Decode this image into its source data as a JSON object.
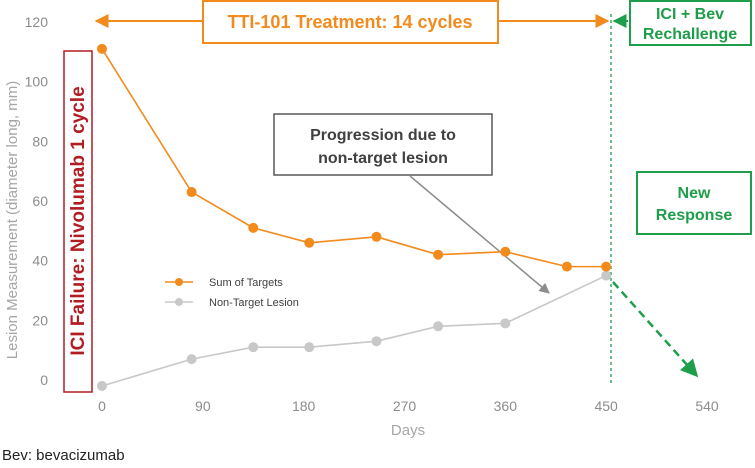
{
  "chart_data": {
    "type": "line",
    "xlabel": "Days",
    "ylabel": "Lesion Measurement (diameter long, mm)",
    "x_ticks": [
      "0",
      "90",
      "180",
      "270",
      "360",
      "450",
      "540"
    ],
    "y_ticks": [
      "0",
      "20",
      "40",
      "60",
      "80",
      "100",
      "120"
    ],
    "xlim": [
      0,
      540
    ],
    "ylim": [
      0,
      120
    ],
    "grid": false,
    "series": [
      {
        "name": "Sum of Targets",
        "color": "#f28a1c",
        "x": [
          0,
          80,
          135,
          185,
          245,
          300,
          360,
          415,
          450
        ],
        "y": [
          111,
          63,
          51,
          46,
          48,
          42,
          43,
          38,
          38
        ]
      },
      {
        "name": "Non-Target Lesion",
        "color": "#c8c8c8",
        "x": [
          0,
          80,
          135,
          185,
          245,
          300,
          360,
          450
        ],
        "y": [
          -2,
          7,
          11,
          11,
          13,
          18,
          19,
          35
        ]
      }
    ],
    "annotations": {
      "treatment": "TTI-101 Treatment: 14 cycles",
      "ici_failure": "ICI Failure: Nivolumab 1 cycle",
      "rechallenge_line1": "ICI + Bev",
      "rechallenge_line2": "Rechallenge",
      "progression_line1": "Progression due to",
      "progression_line2": "non-target lesion",
      "new_response_line1": "New",
      "new_response_line2": "Response"
    },
    "colors": {
      "orange": "#f28a1c",
      "gray": "#c8c8c8",
      "green": "#1e9e4a",
      "red": "#b11d23",
      "box_gray": "#595959",
      "arrow_gray": "#8c8c8c"
    }
  },
  "footnote": "Bev: bevacizumab"
}
